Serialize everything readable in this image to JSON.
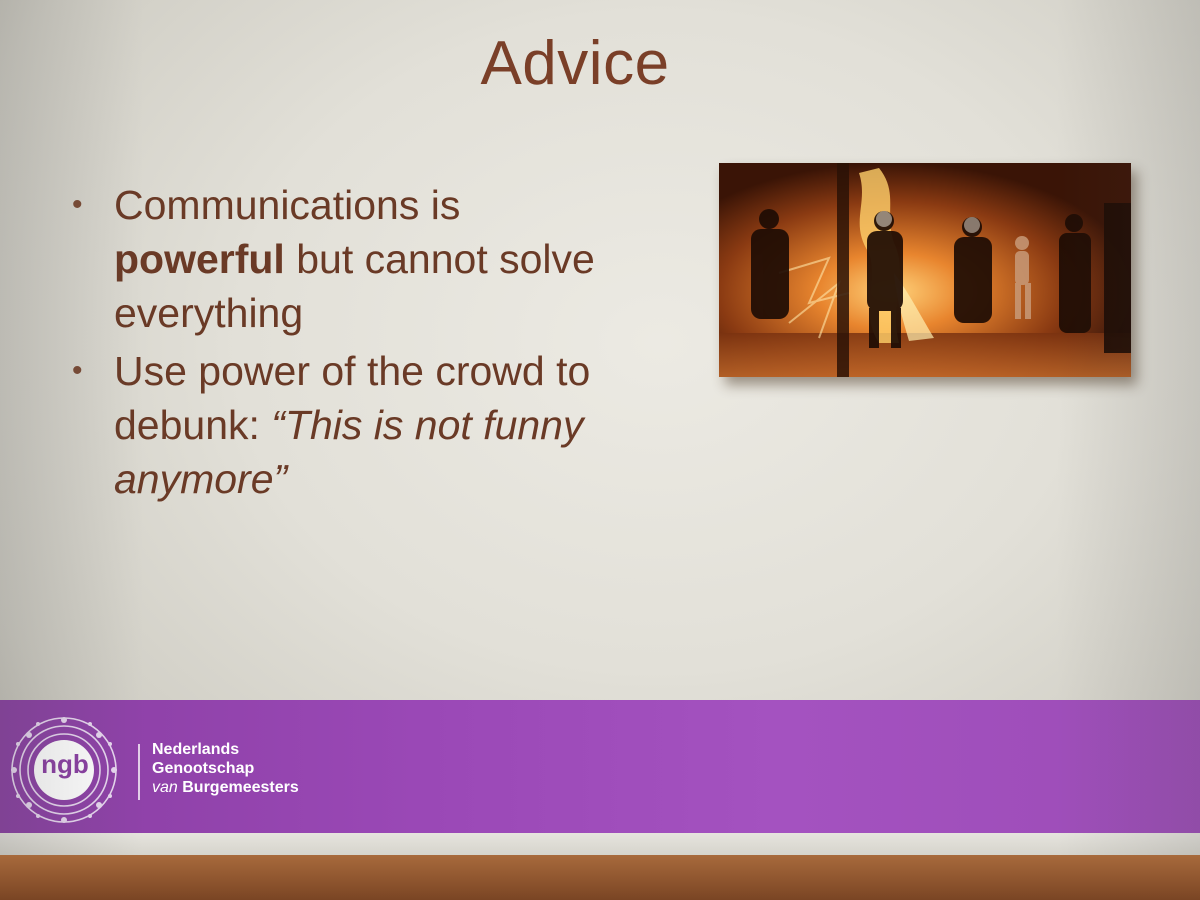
{
  "slide": {
    "title": "Advice",
    "bullets": [
      {
        "text_before": "Communications is",
        "bold": "powerful",
        "text_after": " but cannot solve everything"
      },
      {
        "text_before": "Use power of the crowd to debunk: ",
        "italic": "“This is not funny anymore”"
      }
    ],
    "bullet_symbol": "•"
  },
  "footer": {
    "logo_text": "ngb",
    "org_line1": "Nederlands",
    "org_line2": "Genootschap",
    "org_line3_italic": "van",
    "org_line3_rest": " Burgemeesters",
    "band_color": "#9a48b6"
  }
}
